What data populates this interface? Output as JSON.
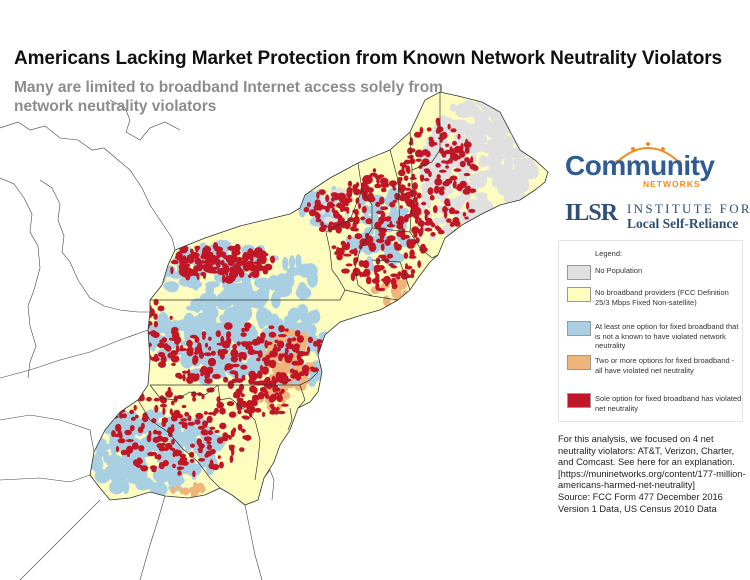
{
  "title": "Americans Lacking Market Protection from Known Network Neutrality Violators",
  "subtitle": "Many are limited to broadband Internet access solely from network neutrality violators",
  "logos": {
    "community_networks": {
      "word": "Community",
      "sub": "NETWORKS",
      "color_primary": "#2f5c92",
      "color_accent": "#f28c1f"
    },
    "ilsr": {
      "mark": "ILSR",
      "line1": "INSTITUTE FOR",
      "line2": "Local Self-Reliance",
      "color": "#2f4f79"
    }
  },
  "legend": {
    "title": "Legend:",
    "items": [
      {
        "label": "No Population",
        "color": "#e0e0e0"
      },
      {
        "label": "No broadband providers (FCC Definition 25/3 Mbps Fixed Non-satellite)",
        "color": "#fdfdbf"
      },
      {
        "label": "At least one option for fixed broadband that is not a known to have violated network neutrality",
        "color": "#a9cfe3"
      },
      {
        "label": "Two or more options for fixed broadband - all have violated net neutrality",
        "color": "#efb47a"
      },
      {
        "label": "Sole option for fixed broadband has violated net neutrality",
        "color": "#c01626"
      }
    ]
  },
  "note": "For this analysis, we focused on 4 net neutrality violators: AT&T, Verizon, Charter, and Comcast. See here for an explanation. [https://muninetworks.org/content/177-million-americans-harmed-net-neutrality]",
  "source": "Source: FCC Form 477 December 2016 Version 1 Data, US Census 2010 Data",
  "map": {
    "colors": {
      "no_population": "#e0e0e0",
      "no_broadband": "#fdfdbf",
      "non_violator": "#a9cfe3",
      "all_violators": "#efb47a",
      "sole_violator": "#c01626",
      "background": "#ffffff",
      "border": "#333333"
    }
  }
}
